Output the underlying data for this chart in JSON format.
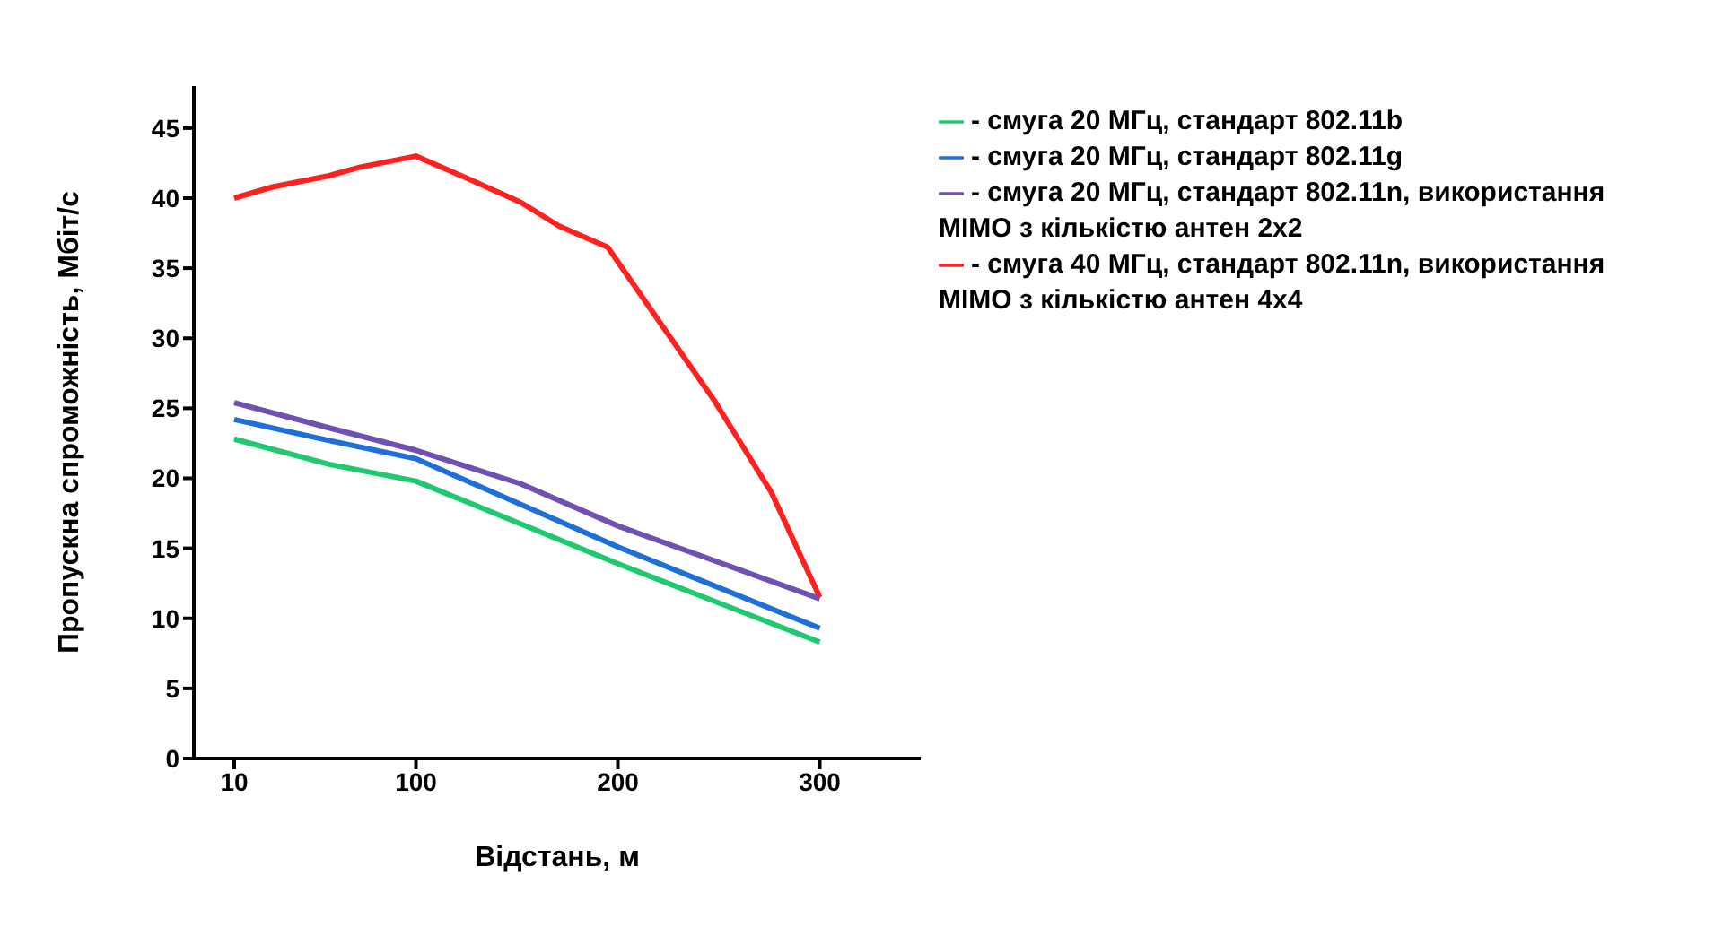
{
  "chart_data": {
    "type": "line",
    "xlabel": "Відстань, м",
    "ylabel": "Пропускна спроможність, Мбіт/с",
    "xlim": [
      -10,
      350
    ],
    "xticks": [
      10,
      100,
      200,
      300
    ],
    "ylim": [
      0,
      48
    ],
    "yticks": [
      0,
      5,
      10,
      15,
      20,
      25,
      30,
      35,
      40,
      45
    ],
    "grid": false,
    "legend": "right",
    "marker": "none",
    "line_style": "solid",
    "series": [
      {
        "name": "- смуга 40 МГц, стандарт 802.11n, використання MIMO з кількістю антен 4x4",
        "color": "#ff2020",
        "x": [
          10,
          29,
          57,
          72,
          100,
          124,
          152,
          171,
          195,
          219,
          248,
          276,
          300
        ],
        "values": [
          40,
          40.8,
          41.6,
          42.2,
          43,
          41.5,
          39.7,
          38,
          36.5,
          31.5,
          25.5,
          19,
          11.5
        ]
      },
      {
        "name": "- смуга 20 МГц, стандарт 802.11n, використання MIMO з кількістю антен 2x2",
        "color": "#7050b0",
        "x": [
          10,
          57,
          100,
          152,
          200,
          300
        ],
        "values": [
          25.4,
          23.6,
          22,
          19.6,
          16.6,
          11.4
        ]
      },
      {
        "name": "- смуга 20 МГц, стандарт 802.11g",
        "color": "#1e6fd8",
        "x": [
          10,
          57,
          100,
          200,
          300
        ],
        "values": [
          24.2,
          22.7,
          21.4,
          15.1,
          9.3
        ]
      },
      {
        "name": "- смуга 20 МГц, стандарт 802.11b",
        "color": "#20c870",
        "x": [
          10,
          57,
          100,
          200,
          300
        ],
        "values": [
          22.8,
          21,
          19.8,
          13.9,
          8.3
        ]
      }
    ]
  }
}
